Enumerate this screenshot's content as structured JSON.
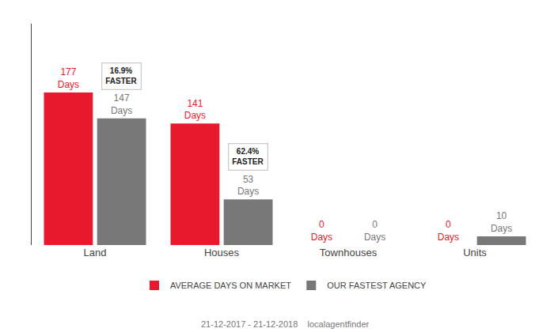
{
  "chart_data": {
    "type": "bar",
    "categories": [
      "Land",
      "Houses",
      "Townhouses",
      "Units"
    ],
    "series": [
      {
        "name": "AVERAGE DAYS ON MARKET",
        "color": "#e8192c",
        "values": [
          177,
          141,
          0,
          0
        ],
        "value_labels": [
          "177\nDays",
          "141\nDays",
          "0\nDays",
          "0\nDays"
        ]
      },
      {
        "name": "OUR FASTEST AGENCY",
        "color": "#787878",
        "values": [
          147,
          53,
          0,
          10
        ],
        "value_labels": [
          "147\nDays",
          "53\nDays",
          "0\nDays",
          "10\nDays"
        ]
      }
    ],
    "data_labels": true,
    "ylim": [
      0,
      256.65
    ],
    "tick_labels": "x",
    "grid": false,
    "legend": "bottom",
    "annotations": [
      {
        "category": "Land",
        "series": "OUR FASTEST AGENCY",
        "text": "16.9%\nFASTER"
      },
      {
        "category": "Houses",
        "series": "OUR FASTEST AGENCY",
        "text": "62.4%\nFASTER"
      },
      {
        "text": "21-12-2017 - 21-12-2018"
      },
      {
        "text": "localagentfinder"
      }
    ]
  }
}
